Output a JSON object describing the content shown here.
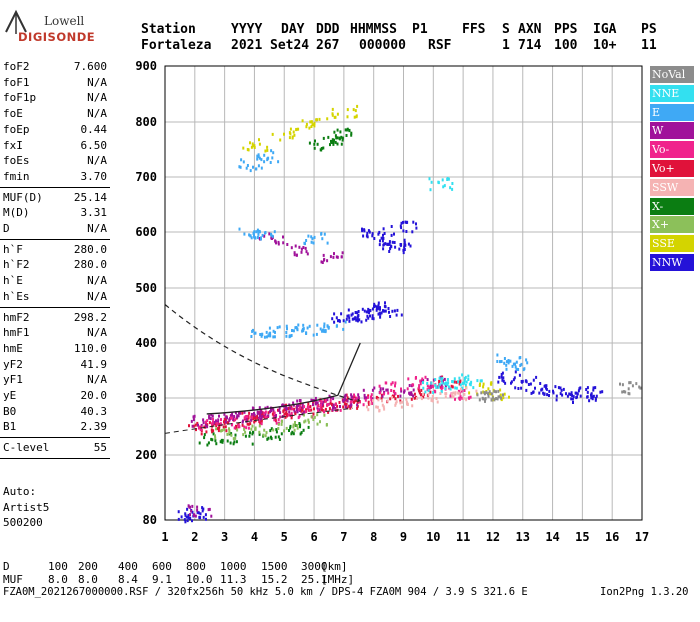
{
  "logo": {
    "line1": "Lowell",
    "line2": "DIGISONDE"
  },
  "header": {
    "labels": [
      "Station",
      "YYYY",
      "DAY",
      "DDD",
      "HHMMSS",
      "P1",
      "FFS",
      "S",
      "AXN",
      "PPS",
      "IGA",
      "PS"
    ],
    "values": [
      "Fortaleza",
      "2021",
      "Set24",
      "267",
      "000000",
      "RSF",
      "",
      "1",
      "714",
      "100",
      "10+",
      "11"
    ]
  },
  "params_group1": [
    {
      "k": "foF2",
      "v": "7.600"
    },
    {
      "k": "foF1",
      "v": "N/A"
    },
    {
      "k": "foF1p",
      "v": "N/A"
    },
    {
      "k": "foE",
      "v": "N/A"
    },
    {
      "k": "foEp",
      "v": "0.44"
    },
    {
      "k": "fxI",
      "v": "6.50"
    },
    {
      "k": "foEs",
      "v": "N/A"
    },
    {
      "k": "fmin",
      "v": "3.70"
    }
  ],
  "params_group2": [
    {
      "k": "MUF(D)",
      "v": "25.14"
    },
    {
      "k": "M(D)",
      "v": "3.31"
    },
    {
      "k": "D",
      "v": "N/A"
    }
  ],
  "params_group3": [
    {
      "k": "h`F",
      "v": "280.0"
    },
    {
      "k": "h`F2",
      "v": "280.0"
    },
    {
      "k": "h`E",
      "v": "N/A"
    },
    {
      "k": "h`Es",
      "v": "N/A"
    }
  ],
  "params_group4": [
    {
      "k": "hmF2",
      "v": "298.2"
    },
    {
      "k": "hmF1",
      "v": "N/A"
    },
    {
      "k": "hmE",
      "v": "110.0"
    },
    {
      "k": "yF2",
      "v": "41.9"
    },
    {
      "k": "yF1",
      "v": "N/A"
    },
    {
      "k": "yE",
      "v": "20.0"
    },
    {
      "k": "B0",
      "v": "40.3"
    },
    {
      "k": "B1",
      "v": "2.39"
    }
  ],
  "params_group5": [
    {
      "k": "C-level",
      "v": "55"
    }
  ],
  "auto": {
    "line1": "Auto:",
    "line2": "Artist5",
    "line3": "500200"
  },
  "legend": [
    {
      "label": "NoVal",
      "color": "#8c8c8c"
    },
    {
      "label": "NNE",
      "color": "#33e0f0"
    },
    {
      "label": "E",
      "color": "#3fa9f5"
    },
    {
      "label": "W",
      "color": "#a0129a"
    },
    {
      "label": "Vo-",
      "color": "#f0238c"
    },
    {
      "label": "Vo+",
      "color": "#e0123a"
    },
    {
      "label": "SSW",
      "color": "#f5b3b3"
    },
    {
      "label": "X-",
      "color": "#0b7d12"
    },
    {
      "label": "X+",
      "color": "#8cc05a"
    },
    {
      "label": "SSE",
      "color": "#d4d400"
    },
    {
      "label": "NNW",
      "color": "#2412d8"
    }
  ],
  "footer": {
    "d_label": "D",
    "d_values": [
      "100",
      "200",
      "400",
      "600",
      "800",
      "1000",
      "1500",
      "3000"
    ],
    "d_unit": "[km]",
    "muf_label": "MUF",
    "muf_values": [
      "8.0",
      "8.0",
      "8.4",
      "9.1",
      "10.0",
      "11.3",
      "15.2",
      "25.1"
    ],
    "muf_unit": "[MHz]",
    "info": "FZA0M_2021267000000.RSF / 320fx256h 50 kHz 5.0 km / DPS-4 FZA0M 904 / 3.9 S 321.6 E",
    "version": "Ion2Png 1.3.20"
  },
  "chart_data": {
    "type": "scatter",
    "title": "",
    "xlabel": "",
    "ylabel": "",
    "xlim": [
      1,
      17
    ],
    "ylim": [
      80,
      900
    ],
    "xticks": [
      1,
      2,
      3,
      4,
      5,
      6,
      7,
      8,
      9,
      10,
      11,
      12,
      13,
      14,
      15,
      16,
      17
    ],
    "yticks": [
      80,
      200,
      300,
      400,
      500,
      600,
      700,
      800,
      900
    ],
    "grid": true,
    "legend_position": "right",
    "series": [
      {
        "name": "NNW",
        "points": [
          [
            7.6,
            455
          ],
          [
            7.9,
            460
          ],
          [
            8.2,
            465
          ],
          [
            7.0,
            450
          ],
          [
            7.3,
            452
          ],
          [
            8.5,
            458
          ],
          [
            12.5,
            340
          ],
          [
            13.0,
            330
          ],
          [
            13.5,
            320
          ],
          [
            14.0,
            315
          ],
          [
            14.5,
            310
          ],
          [
            15.0,
            305
          ],
          [
            15.2,
            312
          ],
          [
            8.0,
            600
          ],
          [
            8.3,
            590
          ],
          [
            8.6,
            580
          ],
          [
            8.8,
            575
          ],
          [
            9.0,
            610
          ],
          [
            1.8,
            90
          ],
          [
            2.0,
            95
          ]
        ]
      },
      {
        "name": "Vo+",
        "points": [
          [
            2.2,
            250
          ],
          [
            2.6,
            255
          ],
          [
            3.0,
            258
          ],
          [
            3.4,
            262
          ],
          [
            3.8,
            266
          ],
          [
            4.2,
            270
          ],
          [
            4.6,
            272
          ],
          [
            5.0,
            276
          ],
          [
            5.4,
            280
          ],
          [
            5.8,
            283
          ],
          [
            6.2,
            287
          ],
          [
            6.6,
            290
          ],
          [
            7.0,
            294
          ],
          [
            7.4,
            298
          ],
          [
            8.5,
            305
          ],
          [
            9.5,
            310
          ],
          [
            10.5,
            330
          ]
        ]
      },
      {
        "name": "W",
        "points": [
          [
            2.3,
            262
          ],
          [
            2.8,
            265
          ],
          [
            3.3,
            268
          ],
          [
            3.8,
            272
          ],
          [
            4.3,
            276
          ],
          [
            4.8,
            280
          ],
          [
            5.3,
            284
          ],
          [
            5.8,
            288
          ],
          [
            6.3,
            292
          ],
          [
            6.8,
            296
          ],
          [
            7.3,
            300
          ],
          [
            8.0,
            310
          ],
          [
            9.0,
            315
          ],
          [
            10.0,
            330
          ],
          [
            4.5,
            590
          ],
          [
            5.5,
            570
          ],
          [
            6.5,
            555
          ],
          [
            2.1,
            98
          ]
        ]
      },
      {
        "name": "Vo-",
        "points": [
          [
            2.5,
            255
          ],
          [
            3.5,
            260
          ],
          [
            4.5,
            268
          ],
          [
            5.5,
            278
          ],
          [
            6.5,
            288
          ],
          [
            7.5,
            300
          ],
          [
            8.5,
            320
          ],
          [
            9.5,
            330
          ],
          [
            10.2,
            320
          ],
          [
            10.8,
            310
          ]
        ]
      },
      {
        "name": "E",
        "points": [
          [
            4.2,
            420
          ],
          [
            4.8,
            422
          ],
          [
            5.4,
            425
          ],
          [
            6.0,
            428
          ],
          [
            6.6,
            432
          ],
          [
            3.9,
            600
          ],
          [
            4.3,
            595
          ],
          [
            6.0,
            590
          ],
          [
            3.8,
            725
          ],
          [
            4.5,
            740
          ],
          [
            12.5,
            370
          ],
          [
            12.8,
            365
          ]
        ]
      },
      {
        "name": "NNE",
        "points": [
          [
            10.4,
            330
          ],
          [
            10.8,
            335
          ],
          [
            11.2,
            330
          ],
          [
            10.0,
            320
          ],
          [
            10.2,
            690
          ]
        ]
      },
      {
        "name": "X-",
        "points": [
          [
            2.5,
            230
          ],
          [
            3.5,
            232
          ],
          [
            4.5,
            240
          ],
          [
            5.5,
            250
          ],
          [
            6.2,
            762
          ],
          [
            6.5,
            770
          ],
          [
            6.8,
            780
          ]
        ]
      },
      {
        "name": "X+",
        "points": [
          [
            3.0,
            240
          ],
          [
            4.0,
            245
          ],
          [
            5.0,
            255
          ],
          [
            6.0,
            265
          ]
        ]
      },
      {
        "name": "SSE",
        "points": [
          [
            4.0,
            760
          ],
          [
            5.0,
            780
          ],
          [
            6.0,
            800
          ],
          [
            7.0,
            820
          ],
          [
            11.5,
            320
          ],
          [
            12.2,
            310
          ]
        ]
      },
      {
        "name": "SSW",
        "points": [
          [
            8.0,
            290
          ],
          [
            9.0,
            295
          ],
          [
            10.0,
            300
          ],
          [
            11.0,
            310
          ]
        ]
      },
      {
        "name": "NoVal",
        "points": [
          [
            11.8,
            310
          ],
          [
            12.0,
            305
          ],
          [
            16.5,
            320
          ]
        ]
      }
    ]
  }
}
